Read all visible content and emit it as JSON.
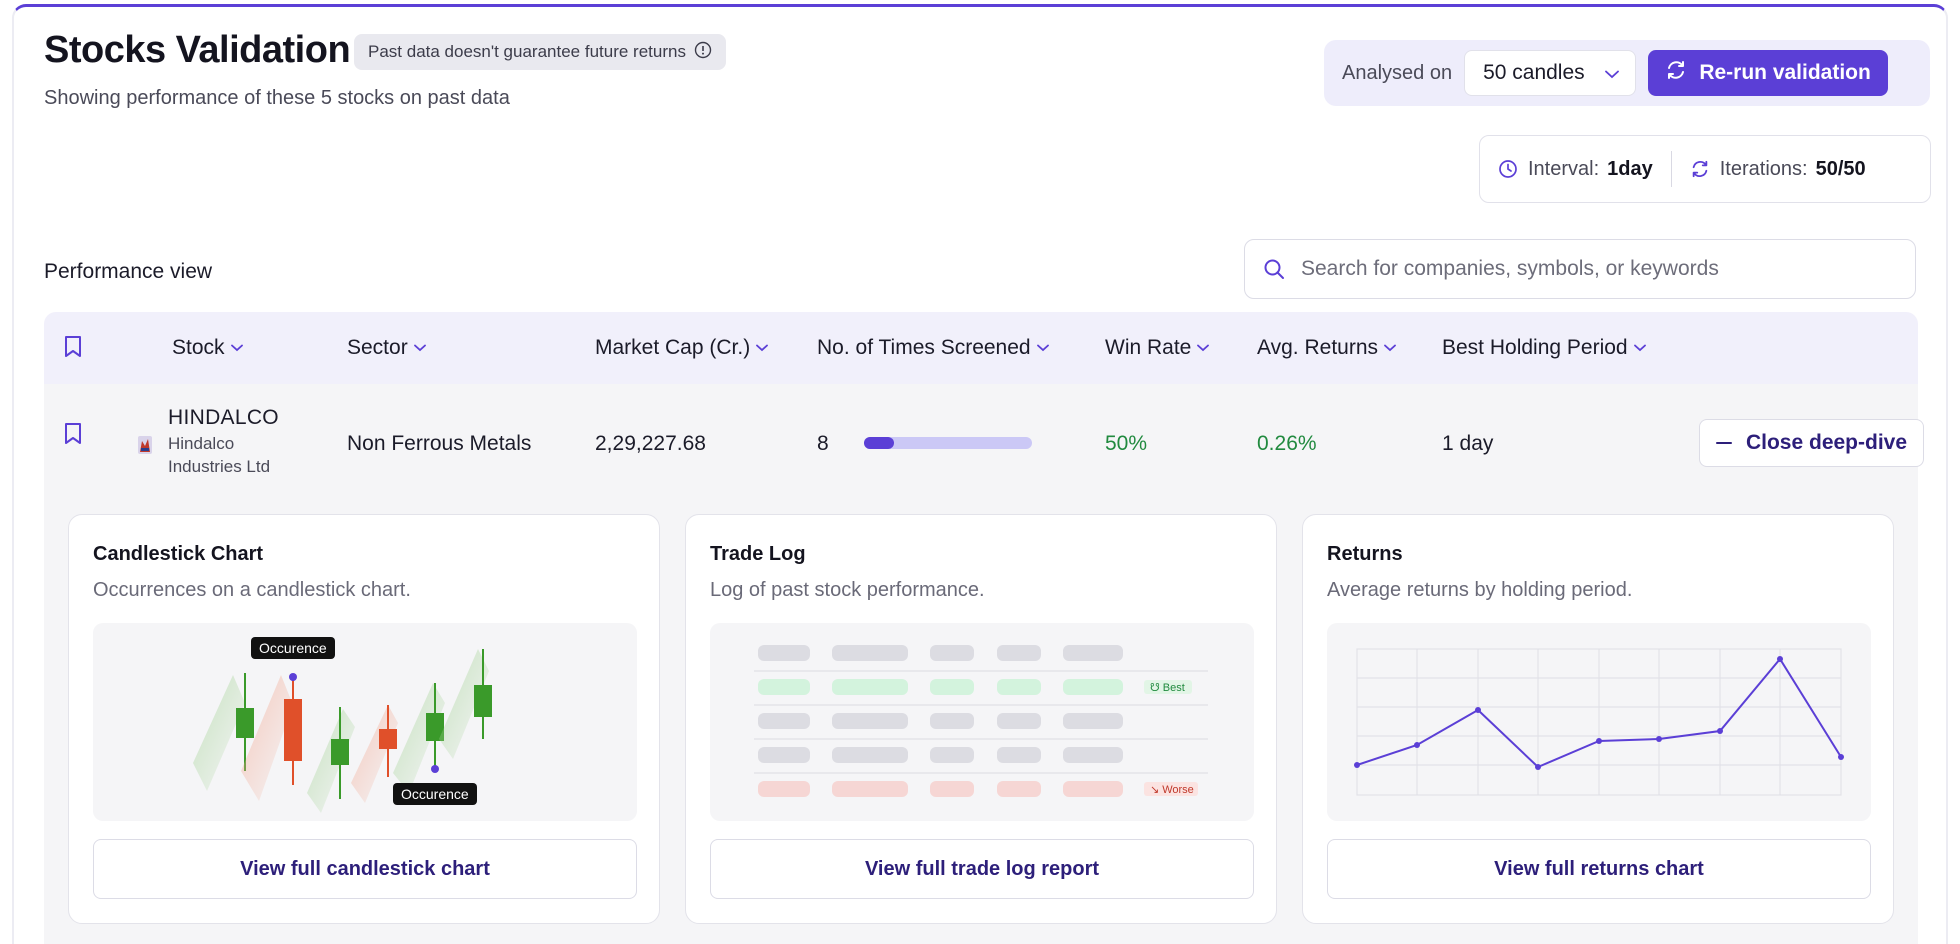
{
  "header": {
    "title": "Stocks Validation",
    "disclaimer": "Past data doesn't guarantee future returns",
    "subtitle": "Showing performance of these 5 stocks on past data",
    "analysed_label": "Analysed on",
    "candles_selected": "50 candles",
    "rerun_label": "Re-run validation",
    "interval_label": "Interval:",
    "interval_value": "1day",
    "iterations_label": "Iterations:",
    "iterations_value": "50/50"
  },
  "performance": {
    "label": "Performance view",
    "search_placeholder": "Search for companies, symbols, or keywords"
  },
  "table": {
    "columns": [
      "Stock",
      "Sector",
      "Market Cap (Cr.)",
      "No. of Times Screened",
      "Win Rate",
      "Avg. Returns",
      "Best Holding Period"
    ],
    "row": {
      "symbol": "HINDALCO",
      "company_line1": "Hindalco",
      "company_line2": "Industries Ltd",
      "sector": "Non Ferrous Metals",
      "market_cap": "2,29,227.68",
      "times_screened": "8",
      "screened_progress": 0.18,
      "win_rate": "50%",
      "avg_returns": "0.26%",
      "best_holding": "1 day",
      "close_label": "Close deep-dive"
    }
  },
  "cards": [
    {
      "title": "Candlestick Chart",
      "desc": "Occurrences on a candlestick chart.",
      "button": "View full candlestick chart",
      "tag_top": "Occurence",
      "tag_bottom": "Occurence"
    },
    {
      "title": "Trade Log",
      "desc": "Log of past stock performance.",
      "button": "View full trade log report",
      "best_tag": "Best",
      "worse_tag": "Worse"
    },
    {
      "title": "Returns",
      "desc": "Average returns by holding period.",
      "button": "View full returns chart"
    }
  ],
  "colors": {
    "accent": "#5b3fd6",
    "green": "#218a3f",
    "candle_green": "#3a9a2a",
    "candle_red": "#e0502a"
  }
}
